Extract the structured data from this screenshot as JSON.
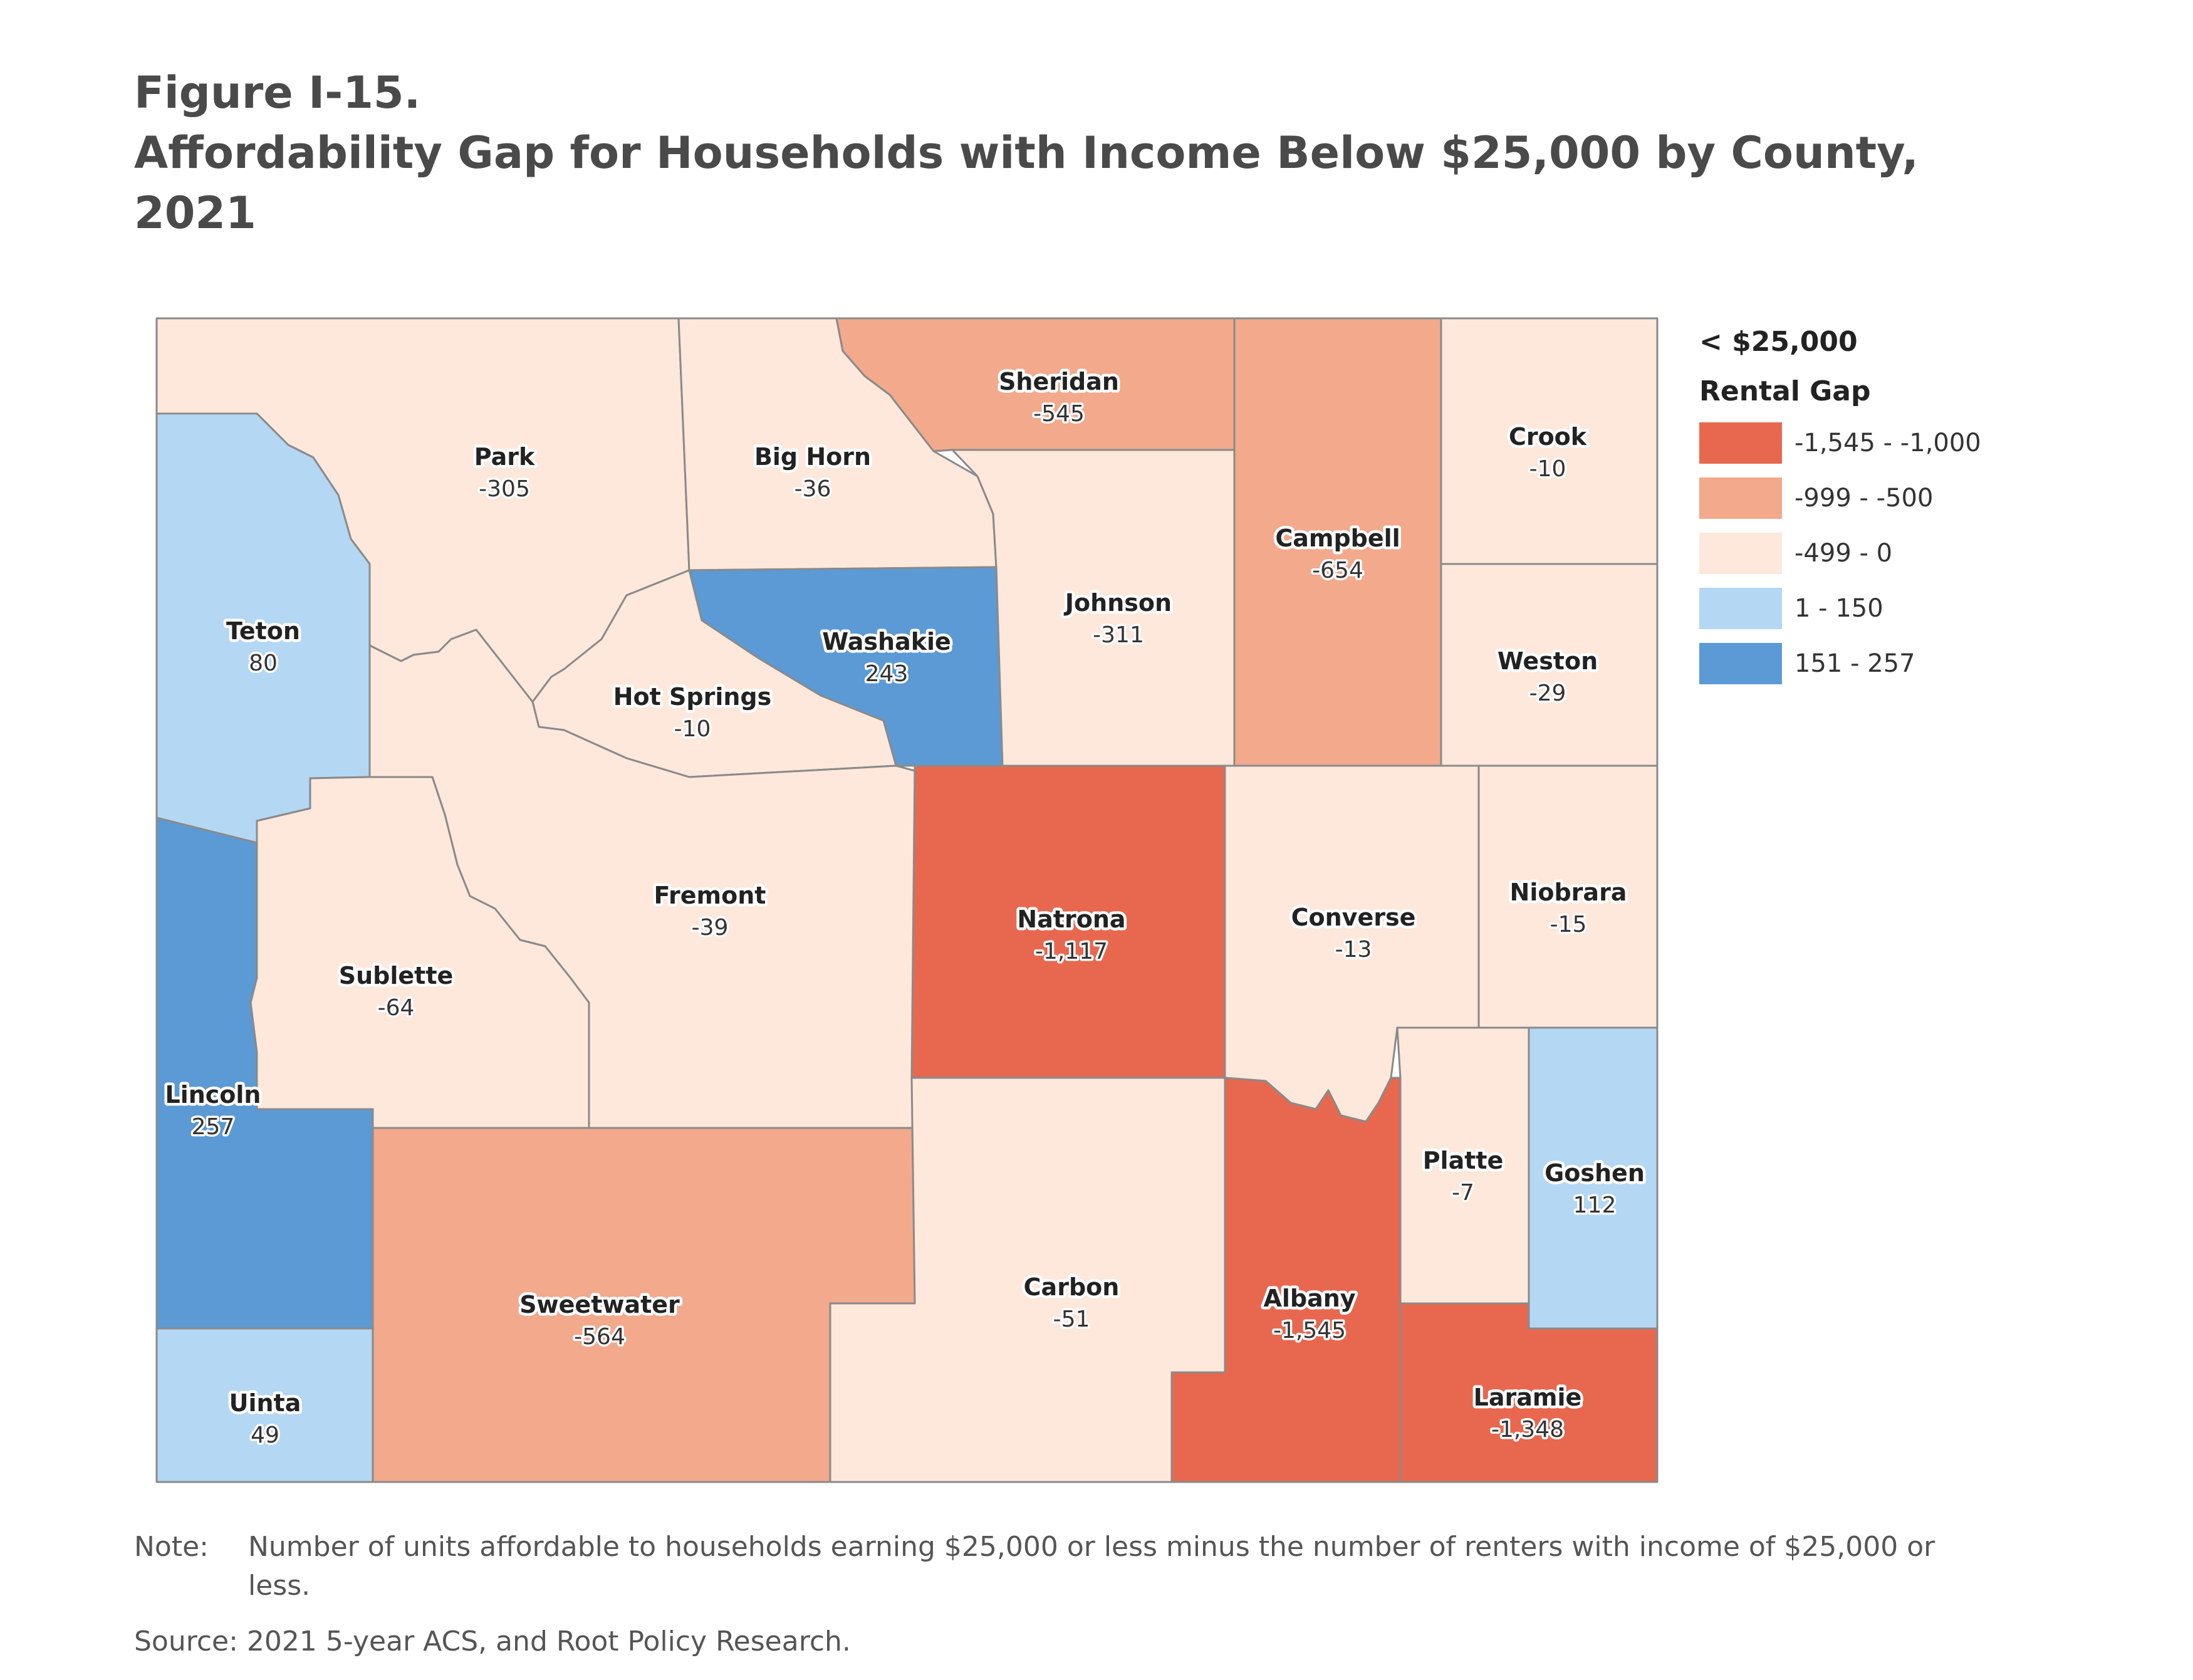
{
  "figure": {
    "number": "Figure I-15.",
    "title_line1": "Affordability Gap for Households with Income Below $25,000 by County,",
    "title_line2": "2021"
  },
  "colors": {
    "class1": "#e8684f",
    "class2": "#f2a98c",
    "class3": "#fde8db",
    "class4": "#b4d7f3",
    "class5": "#5b9ad4",
    "border": "#8a8a8a"
  },
  "map": {
    "counties": [
      {
        "id": "park",
        "name": "Park",
        "value": "-305",
        "cls": "class3"
      },
      {
        "id": "big-horn",
        "name": "Big Horn",
        "value": "-36",
        "cls": "class3"
      },
      {
        "id": "sheridan",
        "name": "Sheridan",
        "value": "-545",
        "cls": "class2"
      },
      {
        "id": "campbell",
        "name": "Campbell",
        "value": "-654",
        "cls": "class2"
      },
      {
        "id": "crook",
        "name": "Crook",
        "value": "-10",
        "cls": "class3"
      },
      {
        "id": "teton",
        "name": "Teton",
        "value": "80",
        "cls": "class4"
      },
      {
        "id": "washakie",
        "name": "Washakie",
        "value": "243",
        "cls": "class5"
      },
      {
        "id": "hot-springs",
        "name": "Hot Springs",
        "value": "-10",
        "cls": "class3"
      },
      {
        "id": "johnson",
        "name": "Johnson",
        "value": "-311",
        "cls": "class3"
      },
      {
        "id": "weston",
        "name": "Weston",
        "value": "-29",
        "cls": "class3"
      },
      {
        "id": "fremont",
        "name": "Fremont",
        "value": "-39",
        "cls": "class3"
      },
      {
        "id": "sublette",
        "name": "Sublette",
        "value": "-64",
        "cls": "class3"
      },
      {
        "id": "natrona",
        "name": "Natrona",
        "value": "-1,117",
        "cls": "class1"
      },
      {
        "id": "converse",
        "name": "Converse",
        "value": "-13",
        "cls": "class3"
      },
      {
        "id": "niobrara",
        "name": "Niobrara",
        "value": "-15",
        "cls": "class3"
      },
      {
        "id": "lincoln",
        "name": "Lincoln",
        "value": "257",
        "cls": "class5"
      },
      {
        "id": "platte",
        "name": "Platte",
        "value": "-7",
        "cls": "class3"
      },
      {
        "id": "goshen",
        "name": "Goshen",
        "value": "112",
        "cls": "class4"
      },
      {
        "id": "sweetwater",
        "name": "Sweetwater",
        "value": "-564",
        "cls": "class2"
      },
      {
        "id": "carbon",
        "name": "Carbon",
        "value": "-51",
        "cls": "class3"
      },
      {
        "id": "albany",
        "name": "Albany",
        "value": "-1,545",
        "cls": "class1"
      },
      {
        "id": "laramie",
        "name": "Laramie",
        "value": "-1,348",
        "cls": "class1"
      },
      {
        "id": "uinta",
        "name": "Uinta",
        "value": "49",
        "cls": "class4"
      }
    ]
  },
  "legend": {
    "title": "< $25,000",
    "subtitle": "Rental Gap",
    "items": [
      {
        "label": "-1,545 - -1,000",
        "cls": "class1"
      },
      {
        "label": "-999 - -500",
        "cls": "class2"
      },
      {
        "label": "-499 - 0",
        "cls": "class3"
      },
      {
        "label": "1 - 150",
        "cls": "class4"
      },
      {
        "label": "151 - 257",
        "cls": "class5"
      }
    ]
  },
  "note": {
    "label": "Note:",
    "text": "Number of units affordable to households earning $25,000 or less minus the number of renters with income of $25,000 or less."
  },
  "source": {
    "text": "Source: 2021 5-year ACS, and Root Policy Research."
  }
}
